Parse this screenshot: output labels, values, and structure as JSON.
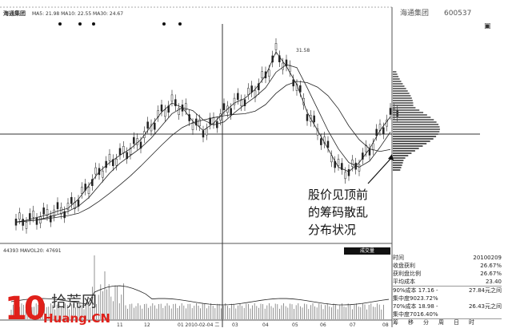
{
  "header": {
    "stock_label": "海通集团",
    "ma_text": "MA5: 21.98 MA10: 22.55 MA30: 24.67"
  },
  "right_header": {
    "name": "海通集团",
    "code": "600537"
  },
  "peak_label": "31.58",
  "volume": {
    "label": "44393 MAVOL20: 47691",
    "button": "成交量"
  },
  "x_ticks": [
    "11",
    "12",
    "01 2010-02-04 二",
    "03",
    "04",
    "05",
    "06",
    "07",
    "08"
  ],
  "price_path": [
    13,
    13.2,
    13.5,
    13.8,
    14.2,
    14.5,
    15.5,
    17,
    18.5,
    19.5,
    20.3,
    21,
    22,
    23.5,
    25,
    26,
    25.5,
    24,
    23,
    23.8,
    25,
    26,
    26.5,
    27.5,
    29,
    31.58,
    30,
    28,
    25,
    23,
    21,
    19,
    18.5,
    19.5,
    21,
    23,
    24.5
  ],
  "info": {
    "rows": [
      {
        "label": "时间",
        "value": "20100209"
      },
      {
        "label": "收盘获利",
        "value": "26.67%"
      },
      {
        "label": "获利盘比例",
        "value": "26.67%"
      },
      {
        "label": "平均成本",
        "value": "23.40"
      }
    ],
    "cost90": "90%成本 17.16 -",
    "cost90_end": "27.84元之间",
    "conc90": "集中度9023.72%",
    "cost70": "70%成本 18.98 -",
    "cost70_end": "26.43元之间",
    "conc70": "集中度7016.40%",
    "tabs": [
      "筹",
      "移",
      "分",
      "周",
      "日",
      "时"
    ]
  },
  "annotation": [
    "股价见顶前",
    "的筹码散乱",
    "分布状况"
  ],
  "watermark": {
    "num": "10",
    "cn": "拾荒网",
    "en": "Huang.CN"
  },
  "colors": {
    "line": "#222222",
    "watermark": "#e0201a"
  }
}
